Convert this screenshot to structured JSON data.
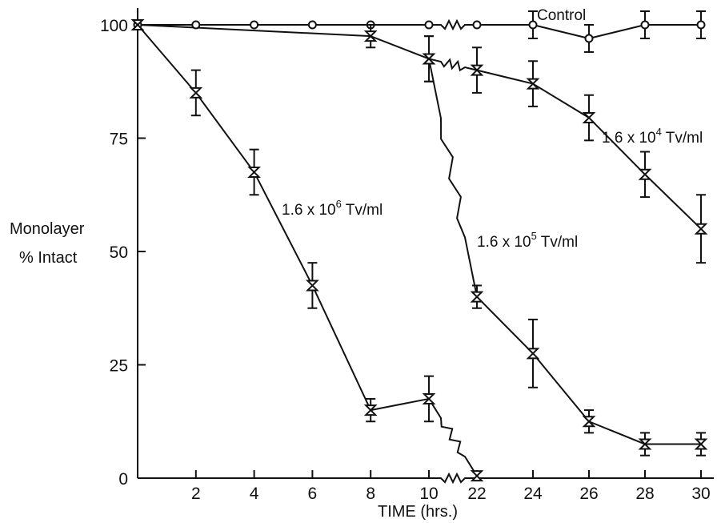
{
  "chart_data": {
    "type": "line",
    "xlabel": "TIME  (hrs.)",
    "ylabel_line1": "Monolayer",
    "ylabel_line2": "% Intact",
    "x_ticks": [
      "2",
      "4",
      "6",
      "8",
      "10",
      "22",
      "24",
      "26",
      "28",
      "30"
    ],
    "y_ticks": [
      "0",
      "25",
      "50",
      "75",
      "100"
    ],
    "ylim": [
      0,
      100
    ],
    "x_break": "axis break between 10 and 22 hrs",
    "series": [
      {
        "name": "Control",
        "marker": "circle",
        "x": [
          0,
          2,
          4,
          6,
          8,
          10,
          22,
          24,
          26,
          28,
          30
        ],
        "y": [
          100,
          100,
          100,
          100,
          100,
          100,
          100,
          100,
          97,
          100,
          100
        ],
        "err": [
          0,
          0,
          0,
          0,
          0,
          0,
          0,
          3,
          3,
          3,
          3
        ]
      },
      {
        "name_prefix": "1.6 x 10",
        "name_exponent": "4",
        "name_suffix": " Tv/ml",
        "marker": "hourglass",
        "x": [
          0,
          8,
          10,
          22,
          24,
          26,
          28,
          30
        ],
        "y": [
          100,
          97.5,
          92.5,
          90,
          87,
          79.5,
          67,
          55
        ],
        "err": [
          0,
          2.5,
          5,
          5,
          5,
          5,
          5,
          7.5
        ]
      },
      {
        "name_prefix": "1.6 x 10",
        "name_exponent": "5",
        "name_suffix": " Tv/ml",
        "marker": "hourglass",
        "x": [
          10,
          22,
          24,
          26,
          28,
          30
        ],
        "y": [
          92.5,
          40,
          27.5,
          12.5,
          7.5,
          7.5
        ],
        "err": [
          5,
          2.5,
          7.5,
          2.5,
          2.5,
          2.5
        ]
      },
      {
        "name_prefix": "1.6 x 10",
        "name_exponent": "6",
        "name_suffix": " Tv/ml",
        "marker": "hourglass",
        "x": [
          0,
          2,
          4,
          6,
          8,
          10,
          22
        ],
        "y": [
          100,
          85,
          67.5,
          42.5,
          15,
          17.5,
          0.5
        ],
        "err": [
          0,
          5,
          5,
          5,
          2.5,
          5,
          0
        ]
      }
    ]
  }
}
